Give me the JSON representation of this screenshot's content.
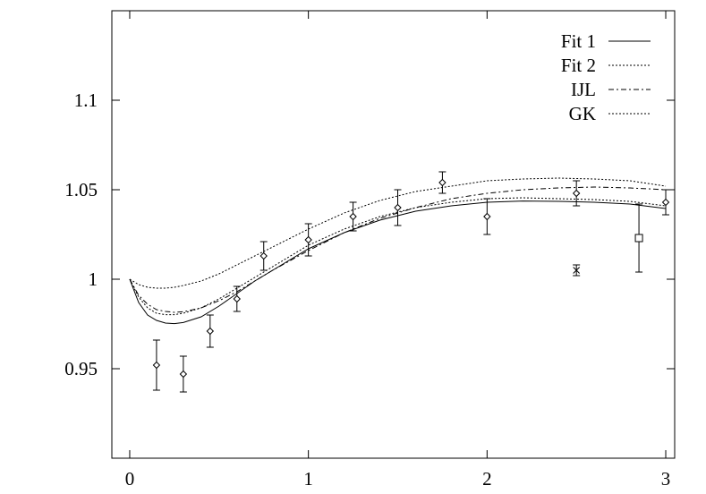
{
  "chart_data": {
    "type": "line",
    "title": "",
    "xlabel": "",
    "ylabel": "",
    "xlim": [
      -0.1,
      3.05
    ],
    "ylim": [
      0.9,
      1.15
    ],
    "x_ticks": [
      0,
      1,
      2,
      3
    ],
    "x_tick_labels": [
      "0",
      "1",
      "2",
      "3"
    ],
    "y_ticks": [
      0.95,
      1.0,
      1.05,
      1.1
    ],
    "y_tick_labels": [
      "0.95",
      "1",
      "1.05",
      "1.1"
    ],
    "grid": false,
    "legend_position": "top-right",
    "series": [
      {
        "name": "Fit 1",
        "kind": "line",
        "style": "solid",
        "x": [
          0,
          0.05,
          0.1,
          0.15,
          0.2,
          0.25,
          0.3,
          0.4,
          0.5,
          0.6,
          0.7,
          0.8,
          1.0,
          1.2,
          1.4,
          1.6,
          1.8,
          2.0,
          2.2,
          2.4,
          2.6,
          2.8,
          3.0
        ],
        "y": [
          1.0,
          0.987,
          0.98,
          0.977,
          0.9755,
          0.9752,
          0.9758,
          0.979,
          0.985,
          0.992,
          0.999,
          1.005,
          1.017,
          1.026,
          1.033,
          1.038,
          1.041,
          1.043,
          1.0437,
          1.0435,
          1.043,
          1.042,
          1.0395
        ]
      },
      {
        "name": "Fit 2",
        "kind": "line",
        "style": "dotted",
        "x": [
          0,
          0.05,
          0.1,
          0.15,
          0.2,
          0.25,
          0.3,
          0.4,
          0.5,
          0.6,
          0.7,
          0.8,
          1.0,
          1.2,
          1.4,
          1.6,
          1.8,
          2.0,
          2.2,
          2.4,
          2.6,
          2.8,
          3.0
        ],
        "y": [
          1.0,
          0.99,
          0.984,
          0.981,
          0.9802,
          0.9802,
          0.981,
          0.984,
          0.989,
          0.995,
          1.001,
          1.007,
          1.019,
          1.028,
          1.035,
          1.04,
          1.043,
          1.045,
          1.0455,
          1.045,
          1.0445,
          1.0435,
          1.041
        ]
      },
      {
        "name": "IJL",
        "kind": "line",
        "style": "dashdot",
        "x": [
          0,
          0.05,
          0.1,
          0.15,
          0.2,
          0.25,
          0.3,
          0.4,
          0.5,
          0.6,
          0.7,
          0.8,
          1.0,
          1.2,
          1.4,
          1.6,
          1.8,
          2.0,
          2.2,
          2.4,
          2.6,
          2.8,
          3.0
        ],
        "y": [
          1.0,
          0.991,
          0.986,
          0.983,
          0.982,
          0.9815,
          0.9818,
          0.984,
          0.988,
          0.993,
          0.999,
          1.005,
          1.016,
          1.026,
          1.034,
          1.04,
          1.045,
          1.048,
          1.05,
          1.051,
          1.0515,
          1.051,
          1.05
        ]
      },
      {
        "name": "GK",
        "kind": "line",
        "style": "dotted",
        "x": [
          0,
          0.05,
          0.1,
          0.15,
          0.2,
          0.25,
          0.3,
          0.4,
          0.5,
          0.6,
          0.7,
          0.8,
          1.0,
          1.2,
          1.4,
          1.6,
          1.8,
          2.0,
          2.2,
          2.4,
          2.6,
          2.8,
          3.0
        ],
        "y": [
          1.0,
          0.997,
          0.9955,
          0.995,
          0.995,
          0.9955,
          0.9965,
          0.999,
          1.003,
          1.008,
          1.013,
          1.018,
          1.028,
          1.037,
          1.044,
          1.049,
          1.052,
          1.055,
          1.056,
          1.0565,
          1.056,
          1.055,
          1.052
        ]
      },
      {
        "kind": "errorbar",
        "marker": "diamond",
        "x": [
          0.15,
          0.3,
          0.45,
          0.6,
          0.75,
          1.0,
          1.25,
          1.5,
          1.75,
          2.0,
          2.5,
          3.0
        ],
        "y": [
          0.952,
          0.947,
          0.971,
          0.989,
          1.013,
          1.022,
          1.035,
          1.04,
          1.054,
          1.035,
          1.048,
          1.043
        ],
        "yerr": [
          0.014,
          0.01,
          0.009,
          0.007,
          0.008,
          0.009,
          0.008,
          0.01,
          0.006,
          0.01,
          0.007,
          0.007
        ]
      },
      {
        "kind": "errorbar",
        "marker": "cross",
        "x": [
          2.5
        ],
        "y": [
          1.005
        ],
        "yerr": [
          0.003
        ]
      },
      {
        "kind": "errorbar",
        "marker": "square",
        "x": [
          2.85
        ],
        "y": [
          1.023
        ],
        "yerr": [
          0.019
        ]
      }
    ]
  }
}
